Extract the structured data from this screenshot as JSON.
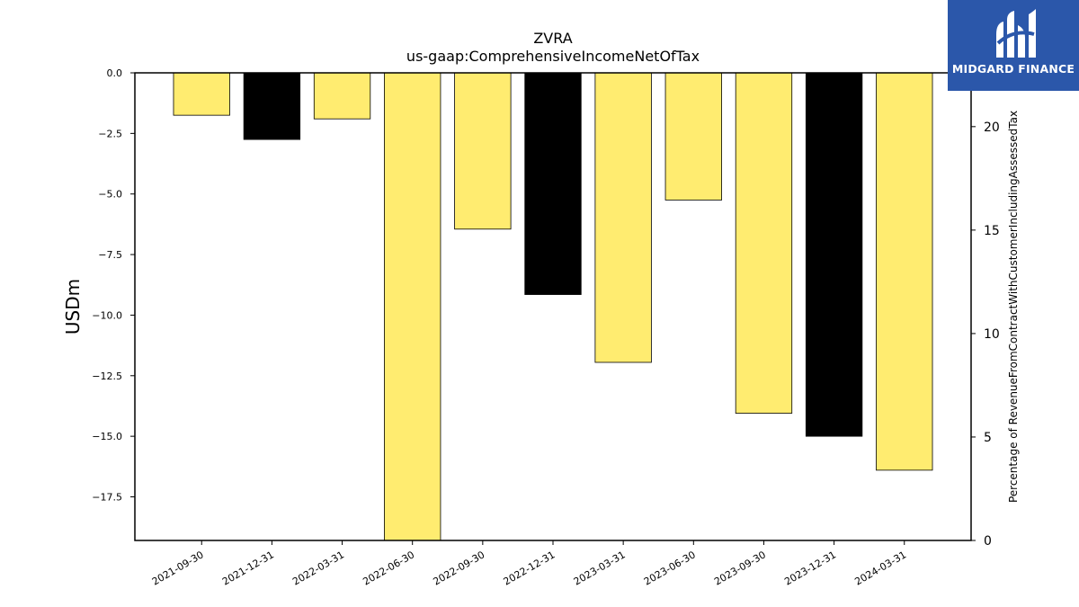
{
  "brand": {
    "name": "MIDGARD FINANCE",
    "logo_icon": "midgard-m-logo-icon",
    "color": "#2b57aa"
  },
  "chart_data": {
    "type": "bar",
    "title": "ZVRA",
    "subtitle": "us-gaap:ComprehensiveIncomeNetOfTax",
    "ylabel": "USDm",
    "y2label": "Percentage of RevenueFromContractWithCustomerIncludingAssessedTax",
    "categories": [
      "2021-09-30",
      "2021-12-31",
      "2022-03-31",
      "2022-06-30",
      "2022-09-30",
      "2022-12-31",
      "2023-03-31",
      "2023-06-30",
      "2023-09-30",
      "2023-12-31",
      "2024-03-31"
    ],
    "values": [
      -1.75,
      -2.75,
      -1.9,
      -19.4,
      -6.45,
      -9.15,
      -11.95,
      -5.25,
      -14.05,
      -15.0,
      -16.4
    ],
    "bar_colors": [
      "#ffec70",
      "#000000",
      "#ffec70",
      "#ffec70",
      "#ffec70",
      "#000000",
      "#ffec70",
      "#ffec70",
      "#ffec70",
      "#000000",
      "#ffec70"
    ],
    "ylim": [
      -19.3,
      0.0
    ],
    "yticks": [
      "0.0",
      "−2.5",
      "−5.0",
      "−7.5",
      "−10.0",
      "−12.5",
      "−15.0",
      "−17.5"
    ],
    "ytick_values": [
      0,
      -2.5,
      -5,
      -7.5,
      -10,
      -12.5,
      -15,
      -17.5
    ],
    "y2lim": [
      0,
      22.6
    ],
    "y2ticks": [
      "0",
      "5",
      "10",
      "15",
      "20"
    ],
    "y2tick_values": [
      0,
      5,
      10,
      15,
      20
    ],
    "grid": false,
    "legend": "none"
  }
}
